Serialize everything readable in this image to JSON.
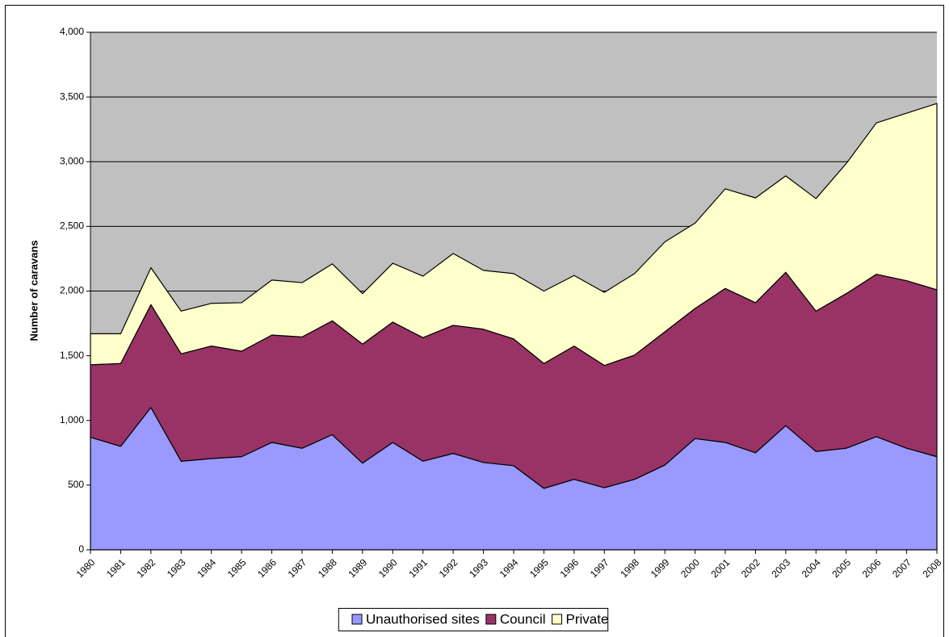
{
  "chart_data": {
    "type": "stacked-area",
    "y_label": "Number of caravans",
    "categories": [
      "1980",
      "1981",
      "1982",
      "1983",
      "1984",
      "1985",
      "1986",
      "1987",
      "1988",
      "1989",
      "1990",
      "1991",
      "1992",
      "1993",
      "1994",
      "1995",
      "1996",
      "1997",
      "1998",
      "1999",
      "2000",
      "2001",
      "2002",
      "2003",
      "2004",
      "2005",
      "2006",
      "2007",
      "2008"
    ],
    "series": [
      {
        "name": "Unauthorised sites",
        "color": "#9999ff",
        "values": [
          870,
          800,
          1100,
          685,
          705,
          720,
          830,
          785,
          890,
          670,
          830,
          685,
          745,
          675,
          650,
          475,
          545,
          480,
          545,
          655,
          860,
          830,
          750,
          960,
          760,
          785,
          875,
          785,
          720
        ]
      },
      {
        "name": "Council",
        "color": "#993366",
        "values": [
          560,
          640,
          795,
          830,
          870,
          815,
          830,
          860,
          880,
          920,
          930,
          955,
          990,
          1030,
          980,
          965,
          1030,
          945,
          960,
          1030,
          1005,
          1190,
          1160,
          1185,
          1085,
          1195,
          1255,
          1295,
          1290
        ]
      },
      {
        "name": "Private",
        "color": "#ffffcc",
        "values": [
          240,
          230,
          285,
          330,
          330,
          375,
          425,
          420,
          440,
          390,
          455,
          475,
          555,
          455,
          505,
          560,
          545,
          565,
          630,
          695,
          660,
          770,
          810,
          745,
          870,
          1005,
          1170,
          1295,
          1440
        ]
      }
    ],
    "ylim": [
      0,
      4000
    ],
    "yticks": [
      0,
      500,
      {
        "value": 1000,
        "label": "1,000"
      },
      {
        "value": 1500,
        "label": "1,500"
      },
      {
        "value": 2000,
        "label": "2,000"
      },
      {
        "value": 2500,
        "label": "2,500"
      },
      {
        "value": 3000,
        "label": "3,000"
      },
      {
        "value": 3500,
        "label": "3,500"
      },
      {
        "value": 4000,
        "label": "4,000"
      }
    ],
    "grid": true,
    "plot_background": "#c0c0c0",
    "legend": "bottom"
  }
}
